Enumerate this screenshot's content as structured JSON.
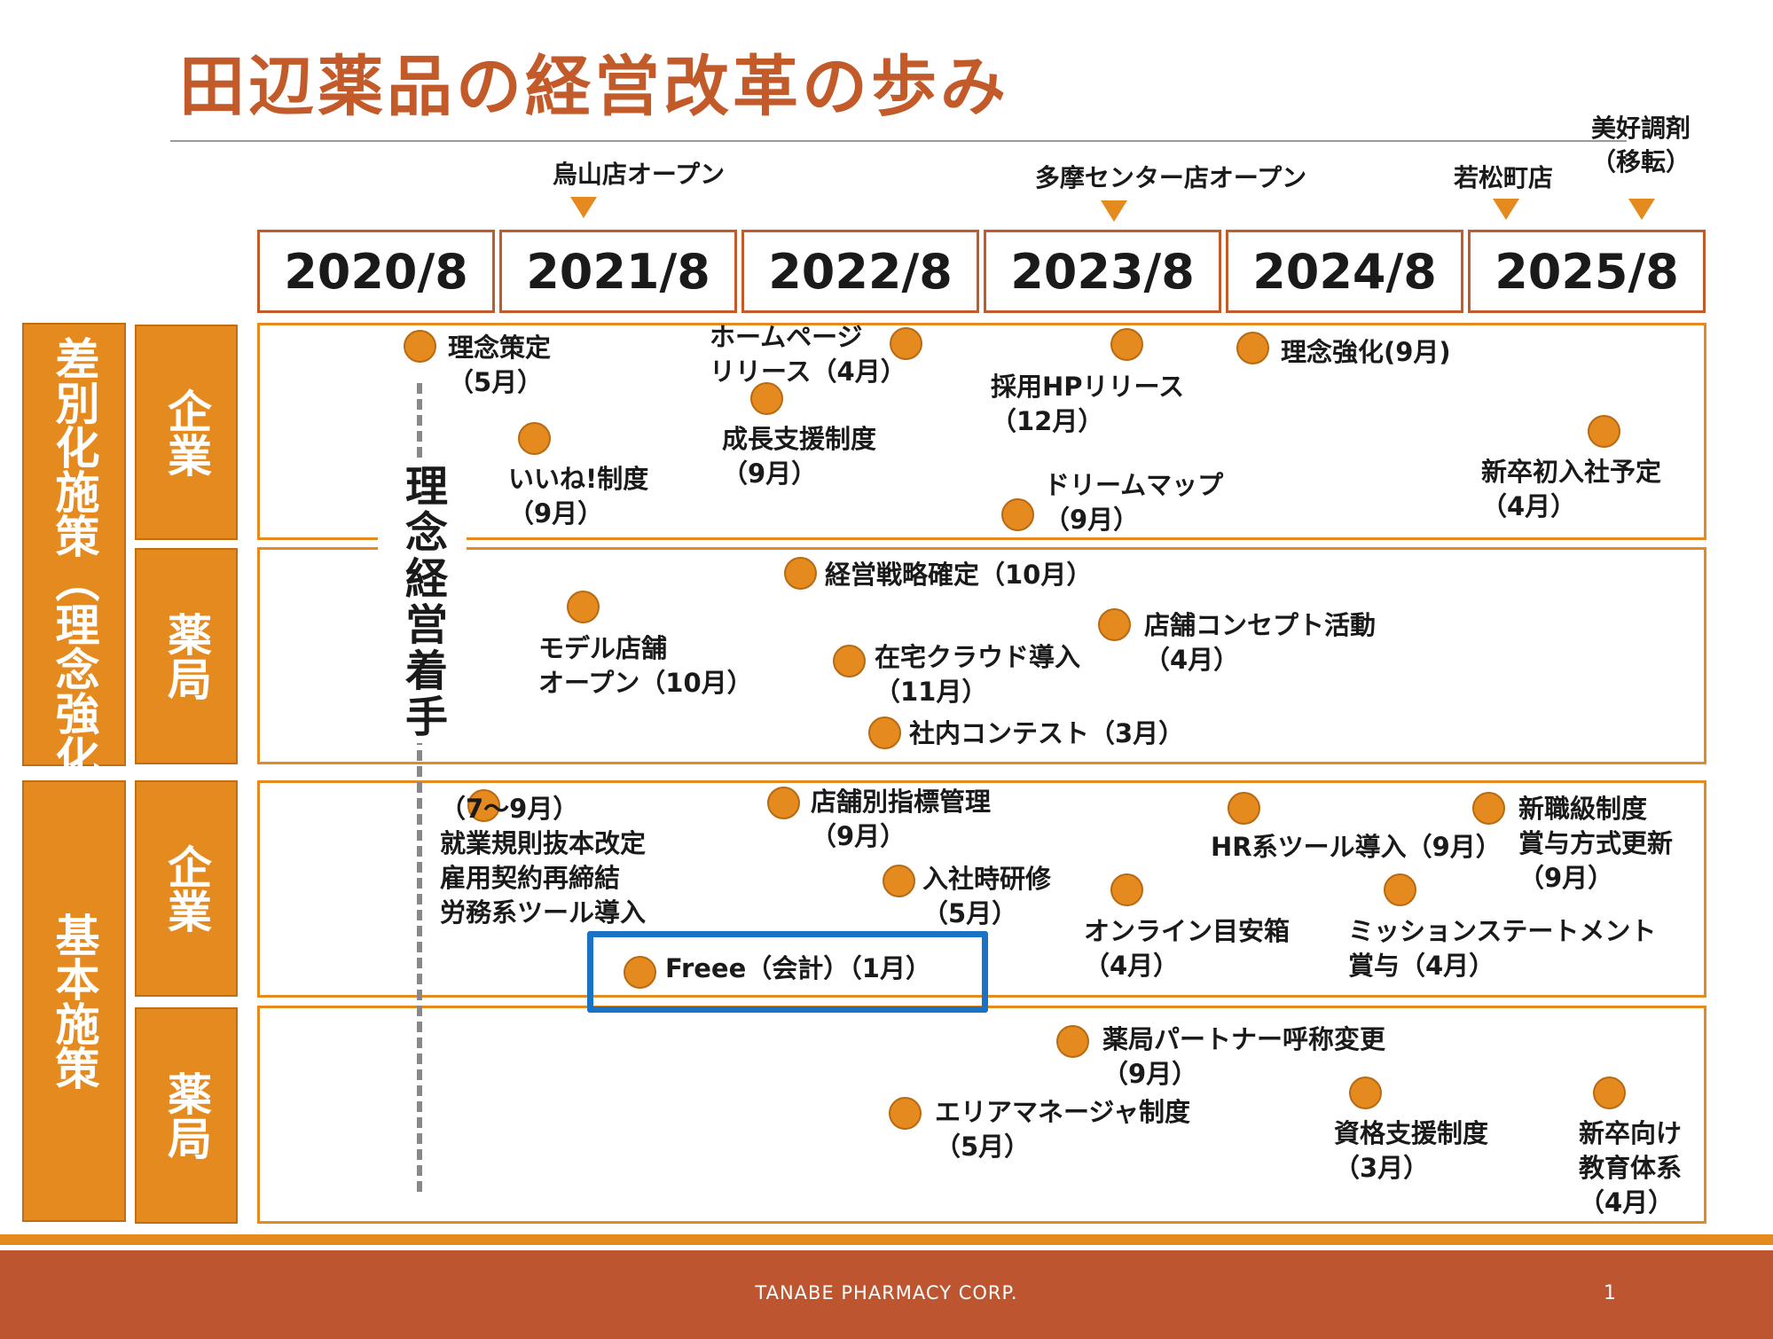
{
  "title": "田辺薬品の経営改革の歩み",
  "years": [
    "2020/8",
    "2021/8",
    "2022/8",
    "2023/8",
    "2024/8",
    "2025/8"
  ],
  "milestones": [
    "烏山店オープン",
    "多摩センター店オープン",
    "若松町店",
    "美好調剤\n（移転）"
  ],
  "categories": {
    "differentiation": "差別化施策（理念強化）",
    "basic": "基本施策",
    "company": "企業",
    "pharmacy": "薬局"
  },
  "start_label": "理念経営着手",
  "events": {
    "diff_company": [
      "理念策定\n（5月）",
      "ホームページ\nリリース（4月）",
      "理念強化(9月)",
      "成長支援制度\n（9月）",
      "採用HPリリース\n（12月）",
      "いいね!制度\n（9月）",
      "新卒初入社予定\n（4月）",
      "ドリームマップ\n（9月）"
    ],
    "diff_pharmacy": [
      "経営戦略確定（10月）",
      "モデル店舗\nオープン（10月）",
      "店舗コンセプト活動\n（4月）",
      "在宅クラウド導入\n（11月）",
      "社内コンテスト（3月）"
    ],
    "basic_company": [
      "（7〜9月）\n就業規則抜本改定\n雇用契約再締結\n労務系ツール導入",
      "店舗別指標管理\n（9月）",
      "HR系ツール導入（9月）",
      "新職級制度\n賞与方式更新\n（9月）",
      "入社時研修\n（5月）",
      "オンライン目安箱\n（4月）",
      "ミッションステートメント\n賞与（4月）",
      "Freee（会計）（1月）"
    ],
    "basic_pharmacy": [
      "薬局パートナー呼称変更\n（9月）",
      "エリアマネージャ制度\n（5月）",
      "資格支援制度\n（3月）",
      "新卒向け\n教育体系\n（4月）"
    ]
  },
  "footer": {
    "company": "TANABE PHARMACY CORP.",
    "page": "1"
  },
  "colors": {
    "accent": "#e58a1f",
    "title": "#c25a2a",
    "footer": "#bc5530",
    "highlight": "#1a72c4"
  }
}
